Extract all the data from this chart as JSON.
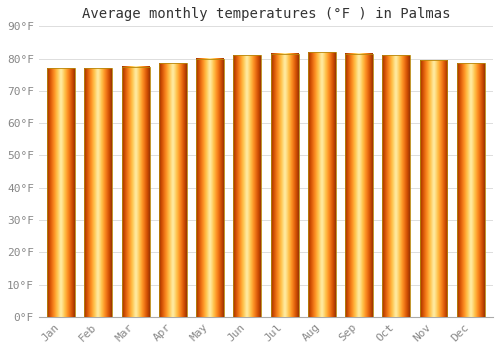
{
  "title": "Average monthly temperatures (°F ) in Palmas",
  "months": [
    "Jan",
    "Feb",
    "Mar",
    "Apr",
    "May",
    "Jun",
    "Jul",
    "Aug",
    "Sep",
    "Oct",
    "Nov",
    "Dec"
  ],
  "values": [
    77,
    77,
    77.5,
    78.5,
    80,
    81,
    81.5,
    82,
    81.5,
    81,
    79.5,
    78.5
  ],
  "ylim": [
    0,
    90
  ],
  "yticks": [
    0,
    10,
    20,
    30,
    40,
    50,
    60,
    70,
    80,
    90
  ],
  "ytick_labels": [
    "0°F",
    "10°F",
    "20°F",
    "30°F",
    "40°F",
    "50°F",
    "60°F",
    "70°F",
    "80°F",
    "90°F"
  ],
  "bg_color": "#FFFFFF",
  "grid_color": "#DDDDDD",
  "bar_edge_color": "#B8860B",
  "bar_outer_color": "#FFA500",
  "bar_inner_color": "#FFD700",
  "title_fontsize": 10,
  "tick_fontsize": 8,
  "title_font": "monospace",
  "bar_width": 0.75
}
